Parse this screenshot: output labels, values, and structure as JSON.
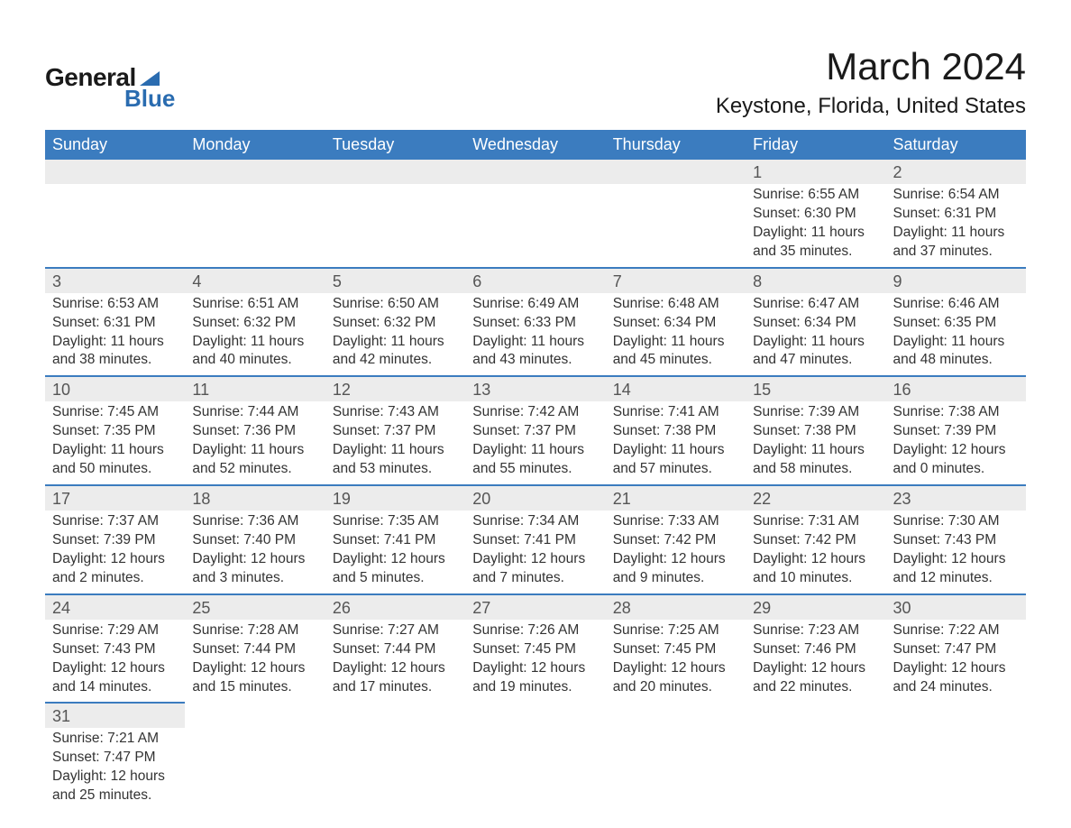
{
  "logo": {
    "text1": "General",
    "text2": "Blue"
  },
  "title": "March 2024",
  "location": "Keystone, Florida, United States",
  "colors": {
    "header_bg": "#3b7cbf",
    "header_text": "#ffffff",
    "daynum_bg": "#ececec",
    "row_border": "#3b7cbf",
    "body_text": "#333333",
    "logo_accent": "#2a6cb0",
    "background": "#ffffff"
  },
  "typography": {
    "title_fontsize": 42,
    "location_fontsize": 24,
    "header_fontsize": 18,
    "daynum_fontsize": 18,
    "body_fontsize": 15.5
  },
  "table": {
    "type": "calendar",
    "columns": [
      "Sunday",
      "Monday",
      "Tuesday",
      "Wednesday",
      "Thursday",
      "Friday",
      "Saturday"
    ],
    "weeks": [
      [
        null,
        null,
        null,
        null,
        null,
        {
          "n": "1",
          "sr": "6:55 AM",
          "ss": "6:30 PM",
          "dl1": "11 hours",
          "dl2": "and 35 minutes."
        },
        {
          "n": "2",
          "sr": "6:54 AM",
          "ss": "6:31 PM",
          "dl1": "11 hours",
          "dl2": "and 37 minutes."
        }
      ],
      [
        {
          "n": "3",
          "sr": "6:53 AM",
          "ss": "6:31 PM",
          "dl1": "11 hours",
          "dl2": "and 38 minutes."
        },
        {
          "n": "4",
          "sr": "6:51 AM",
          "ss": "6:32 PM",
          "dl1": "11 hours",
          "dl2": "and 40 minutes."
        },
        {
          "n": "5",
          "sr": "6:50 AM",
          "ss": "6:32 PM",
          "dl1": "11 hours",
          "dl2": "and 42 minutes."
        },
        {
          "n": "6",
          "sr": "6:49 AM",
          "ss": "6:33 PM",
          "dl1": "11 hours",
          "dl2": "and 43 minutes."
        },
        {
          "n": "7",
          "sr": "6:48 AM",
          "ss": "6:34 PM",
          "dl1": "11 hours",
          "dl2": "and 45 minutes."
        },
        {
          "n": "8",
          "sr": "6:47 AM",
          "ss": "6:34 PM",
          "dl1": "11 hours",
          "dl2": "and 47 minutes."
        },
        {
          "n": "9",
          "sr": "6:46 AM",
          "ss": "6:35 PM",
          "dl1": "11 hours",
          "dl2": "and 48 minutes."
        }
      ],
      [
        {
          "n": "10",
          "sr": "7:45 AM",
          "ss": "7:35 PM",
          "dl1": "11 hours",
          "dl2": "and 50 minutes."
        },
        {
          "n": "11",
          "sr": "7:44 AM",
          "ss": "7:36 PM",
          "dl1": "11 hours",
          "dl2": "and 52 minutes."
        },
        {
          "n": "12",
          "sr": "7:43 AM",
          "ss": "7:37 PM",
          "dl1": "11 hours",
          "dl2": "and 53 minutes."
        },
        {
          "n": "13",
          "sr": "7:42 AM",
          "ss": "7:37 PM",
          "dl1": "11 hours",
          "dl2": "and 55 minutes."
        },
        {
          "n": "14",
          "sr": "7:41 AM",
          "ss": "7:38 PM",
          "dl1": "11 hours",
          "dl2": "and 57 minutes."
        },
        {
          "n": "15",
          "sr": "7:39 AM",
          "ss": "7:38 PM",
          "dl1": "11 hours",
          "dl2": "and 58 minutes."
        },
        {
          "n": "16",
          "sr": "7:38 AM",
          "ss": "7:39 PM",
          "dl1": "12 hours",
          "dl2": "and 0 minutes."
        }
      ],
      [
        {
          "n": "17",
          "sr": "7:37 AM",
          "ss": "7:39 PM",
          "dl1": "12 hours",
          "dl2": "and 2 minutes."
        },
        {
          "n": "18",
          "sr": "7:36 AM",
          "ss": "7:40 PM",
          "dl1": "12 hours",
          "dl2": "and 3 minutes."
        },
        {
          "n": "19",
          "sr": "7:35 AM",
          "ss": "7:41 PM",
          "dl1": "12 hours",
          "dl2": "and 5 minutes."
        },
        {
          "n": "20",
          "sr": "7:34 AM",
          "ss": "7:41 PM",
          "dl1": "12 hours",
          "dl2": "and 7 minutes."
        },
        {
          "n": "21",
          "sr": "7:33 AM",
          "ss": "7:42 PM",
          "dl1": "12 hours",
          "dl2": "and 9 minutes."
        },
        {
          "n": "22",
          "sr": "7:31 AM",
          "ss": "7:42 PM",
          "dl1": "12 hours",
          "dl2": "and 10 minutes."
        },
        {
          "n": "23",
          "sr": "7:30 AM",
          "ss": "7:43 PM",
          "dl1": "12 hours",
          "dl2": "and 12 minutes."
        }
      ],
      [
        {
          "n": "24",
          "sr": "7:29 AM",
          "ss": "7:43 PM",
          "dl1": "12 hours",
          "dl2": "and 14 minutes."
        },
        {
          "n": "25",
          "sr": "7:28 AM",
          "ss": "7:44 PM",
          "dl1": "12 hours",
          "dl2": "and 15 minutes."
        },
        {
          "n": "26",
          "sr": "7:27 AM",
          "ss": "7:44 PM",
          "dl1": "12 hours",
          "dl2": "and 17 minutes."
        },
        {
          "n": "27",
          "sr": "7:26 AM",
          "ss": "7:45 PM",
          "dl1": "12 hours",
          "dl2": "and 19 minutes."
        },
        {
          "n": "28",
          "sr": "7:25 AM",
          "ss": "7:45 PM",
          "dl1": "12 hours",
          "dl2": "and 20 minutes."
        },
        {
          "n": "29",
          "sr": "7:23 AM",
          "ss": "7:46 PM",
          "dl1": "12 hours",
          "dl2": "and 22 minutes."
        },
        {
          "n": "30",
          "sr": "7:22 AM",
          "ss": "7:47 PM",
          "dl1": "12 hours",
          "dl2": "and 24 minutes."
        }
      ],
      [
        {
          "n": "31",
          "sr": "7:21 AM",
          "ss": "7:47 PM",
          "dl1": "12 hours",
          "dl2": "and 25 minutes."
        },
        null,
        null,
        null,
        null,
        null,
        null
      ]
    ],
    "labels": {
      "sunrise": "Sunrise:",
      "sunset": "Sunset:",
      "daylight": "Daylight:"
    }
  }
}
